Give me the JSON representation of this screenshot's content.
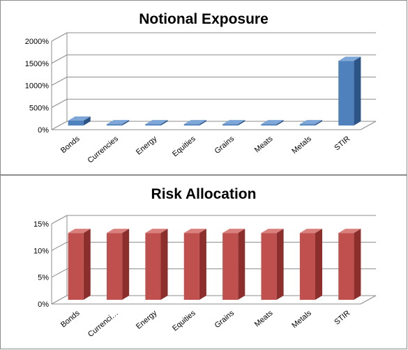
{
  "colors": {
    "bar_blue_front": "#4f81bd",
    "bar_blue_side": "#2c5487",
    "bar_blue_top": "#7ea7d8",
    "bar_red_front": "#c0504d",
    "bar_red_side": "#8b2e2c",
    "bar_red_top": "#d9807d",
    "grid": "#8c8c8c",
    "background": "#ffffff"
  },
  "chart_data": [
    {
      "type": "bar",
      "title": "Notional Exposure",
      "xlabel": "",
      "ylabel": "",
      "categories": [
        "Bonds",
        "Currencies",
        "Energy",
        "Equities",
        "Grains",
        "Meats",
        "Metals",
        "STIR"
      ],
      "values": [
        110,
        30,
        30,
        30,
        30,
        30,
        30,
        1460
      ],
      "value_unit": "%",
      "ylim": [
        0,
        2000
      ],
      "yticks": [
        "0%",
        "500%",
        "1000%",
        "1500%",
        "2000%"
      ],
      "grid": true,
      "style": "3d-column"
    },
    {
      "type": "bar",
      "title": "Risk Allocation",
      "xlabel": "",
      "ylabel": "",
      "categories": [
        "Bonds",
        "Currenci…",
        "Energy",
        "Equities",
        "Grains",
        "Meats",
        "Metals",
        "STIR"
      ],
      "values": [
        12.5,
        12.5,
        12.5,
        12.5,
        12.5,
        12.5,
        12.5,
        12.5
      ],
      "value_unit": "%",
      "ylim": [
        0,
        15
      ],
      "yticks": [
        "0%",
        "5%",
        "10%",
        "15%"
      ],
      "grid": true,
      "style": "3d-column"
    }
  ]
}
